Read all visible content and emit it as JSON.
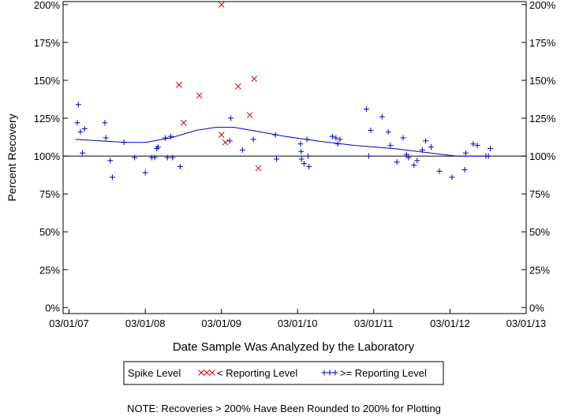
{
  "chart_data": {
    "type": "scatter",
    "title": "",
    "xlabel": "Date Sample Was Analyzed by the Laboratory",
    "ylabel": "Percent Recovery",
    "x_ticks": [
      "03/01/07",
      "03/01/08",
      "03/01/09",
      "03/01/10",
      "03/01/11",
      "03/01/12",
      "03/01/13"
    ],
    "y_ticks": [
      "0%",
      "25%",
      "50%",
      "75%",
      "100%",
      "125%",
      "150%",
      "175%",
      "200%"
    ],
    "xlim": [
      "2007-02-01",
      "2013-03-01"
    ],
    "ylim": [
      -4,
      202
    ],
    "reference_line": 100,
    "legend": {
      "title": "Spike Level",
      "placement": "bottom"
    },
    "note": "NOTE: Recoveries > 200% Have Been Rounded to 200% for Plotting",
    "colors": {
      "below": "#dd0000",
      "above": "#0000cc",
      "axis": "#000000"
    },
    "series": [
      {
        "name": "< Reporting Level",
        "marker": "x",
        "points": [
          {
            "x": "2008-08-10",
            "y": 147
          },
          {
            "x": "2008-09-01",
            "y": 122
          },
          {
            "x": "2008-11-15",
            "y": 140
          },
          {
            "x": "2009-03-01",
            "y": 200
          },
          {
            "x": "2009-03-01",
            "y": 114
          },
          {
            "x": "2009-03-20",
            "y": 109
          },
          {
            "x": "2009-05-20",
            "y": 146
          },
          {
            "x": "2009-07-15",
            "y": 127
          },
          {
            "x": "2009-08-05",
            "y": 151
          },
          {
            "x": "2009-08-25",
            "y": 92
          }
        ]
      },
      {
        "name": ">= Reporting Level",
        "marker": "+",
        "points": [
          {
            "x": "2007-04-15",
            "y": 134
          },
          {
            "x": "2007-04-10",
            "y": 122
          },
          {
            "x": "2007-04-25",
            "y": 116
          },
          {
            "x": "2007-05-15",
            "y": 118
          },
          {
            "x": "2007-05-05",
            "y": 102
          },
          {
            "x": "2007-08-20",
            "y": 122
          },
          {
            "x": "2007-08-25",
            "y": 112
          },
          {
            "x": "2007-09-15",
            "y": 97
          },
          {
            "x": "2007-09-25",
            "y": 86
          },
          {
            "x": "2007-11-20",
            "y": 109
          },
          {
            "x": "2008-01-10",
            "y": 99
          },
          {
            "x": "2008-03-01",
            "y": 89
          },
          {
            "x": "2008-04-01",
            "y": 99
          },
          {
            "x": "2008-04-15",
            "y": 99
          },
          {
            "x": "2008-04-25",
            "y": 105
          },
          {
            "x": "2008-05-01",
            "y": 106
          },
          {
            "x": "2008-06-05",
            "y": 112
          },
          {
            "x": "2008-06-15",
            "y": 99
          },
          {
            "x": "2008-07-01",
            "y": 113
          },
          {
            "x": "2008-07-10",
            "y": 99
          },
          {
            "x": "2008-08-15",
            "y": 93
          },
          {
            "x": "2009-04-15",
            "y": 125
          },
          {
            "x": "2009-04-10",
            "y": 110
          },
          {
            "x": "2009-06-10",
            "y": 104
          },
          {
            "x": "2009-08-01",
            "y": 111
          },
          {
            "x": "2009-11-15",
            "y": 114
          },
          {
            "x": "2009-11-20",
            "y": 98
          },
          {
            "x": "2010-03-15",
            "y": 108
          },
          {
            "x": "2010-03-18",
            "y": 103
          },
          {
            "x": "2010-03-20",
            "y": 98
          },
          {
            "x": "2010-04-01",
            "y": 95
          },
          {
            "x": "2010-04-15",
            "y": 111
          },
          {
            "x": "2010-04-20",
            "y": 100
          },
          {
            "x": "2010-04-25",
            "y": 93
          },
          {
            "x": "2010-08-15",
            "y": 113
          },
          {
            "x": "2010-09-01",
            "y": 112
          },
          {
            "x": "2010-09-10",
            "y": 108
          },
          {
            "x": "2010-09-20",
            "y": 111
          },
          {
            "x": "2011-01-25",
            "y": 131
          },
          {
            "x": "2011-02-05",
            "y": 100
          },
          {
            "x": "2011-02-15",
            "y": 117
          },
          {
            "x": "2011-04-10",
            "y": 126
          },
          {
            "x": "2011-05-10",
            "y": 116
          },
          {
            "x": "2011-05-20",
            "y": 107
          },
          {
            "x": "2011-06-20",
            "y": 96
          },
          {
            "x": "2011-07-20",
            "y": 112
          },
          {
            "x": "2011-08-05",
            "y": 101
          },
          {
            "x": "2011-08-15",
            "y": 99
          },
          {
            "x": "2011-09-10",
            "y": 94
          },
          {
            "x": "2011-09-25",
            "y": 97
          },
          {
            "x": "2011-10-20",
            "y": 104
          },
          {
            "x": "2011-11-05",
            "y": 110
          },
          {
            "x": "2011-12-01",
            "y": 106
          },
          {
            "x": "2012-01-10",
            "y": 90
          },
          {
            "x": "2012-03-10",
            "y": 86
          },
          {
            "x": "2012-05-10",
            "y": 91
          },
          {
            "x": "2012-05-15",
            "y": 102
          },
          {
            "x": "2012-06-20",
            "y": 108
          },
          {
            "x": "2012-07-10",
            "y": 107
          },
          {
            "x": "2012-08-20",
            "y": 100
          },
          {
            "x": "2012-09-01",
            "y": 100
          },
          {
            "x": "2012-09-10",
            "y": 105
          }
        ]
      }
    ],
    "trend": {
      "name": "smoothed trend",
      "points": [
        {
          "x": "2007-04-01",
          "y": 111
        },
        {
          "x": "2007-08-01",
          "y": 110
        },
        {
          "x": "2007-12-01",
          "y": 109
        },
        {
          "x": "2008-03-01",
          "y": 109
        },
        {
          "x": "2008-07-01",
          "y": 112
        },
        {
          "x": "2008-11-01",
          "y": 117
        },
        {
          "x": "2009-02-01",
          "y": 119
        },
        {
          "x": "2009-05-01",
          "y": 119
        },
        {
          "x": "2009-09-01",
          "y": 116
        },
        {
          "x": "2010-01-01",
          "y": 113
        },
        {
          "x": "2010-06-01",
          "y": 110
        },
        {
          "x": "2010-12-01",
          "y": 107
        },
        {
          "x": "2011-06-01",
          "y": 105
        },
        {
          "x": "2011-12-01",
          "y": 102
        },
        {
          "x": "2012-04-01",
          "y": 100
        },
        {
          "x": "2012-09-10",
          "y": 100
        }
      ]
    }
  }
}
